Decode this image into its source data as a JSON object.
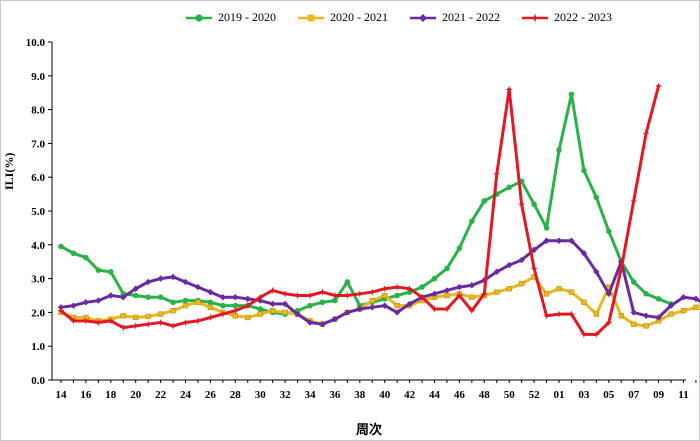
{
  "chart_data": {
    "type": "line",
    "xlabel": "周次",
    "ylabel": "ILI(%)",
    "ylim": [
      0,
      10
    ],
    "yticks": [
      "0.0",
      "1.0",
      "2.0",
      "3.0",
      "4.0",
      "5.0",
      "6.0",
      "7.0",
      "8.0",
      "9.0",
      "10.0"
    ],
    "x_tick_labels": [
      "14",
      "16",
      "18",
      "20",
      "22",
      "24",
      "26",
      "28",
      "30",
      "32",
      "34",
      "36",
      "38",
      "40",
      "42",
      "44",
      "46",
      "48",
      "50",
      "52",
      "01",
      "03",
      "05",
      "07",
      "09",
      "11"
    ],
    "week_count": 52,
    "series": [
      {
        "name": "2019 - 2020",
        "color": "#2bb04a",
        "marker": "circle",
        "values": [
          3.95,
          3.75,
          3.62,
          3.25,
          3.2,
          2.55,
          2.5,
          2.45,
          2.45,
          2.3,
          2.35,
          2.35,
          2.3,
          2.2,
          2.2,
          2.2,
          2.1,
          2.0,
          1.95,
          2.05,
          2.2,
          2.3,
          2.35,
          2.9,
          2.2,
          2.3,
          2.4,
          2.5,
          2.6,
          2.75,
          3.0,
          3.3,
          3.9,
          4.7,
          5.3,
          5.5,
          5.7,
          5.88,
          5.2,
          4.5,
          6.8,
          8.45,
          6.2,
          5.4,
          4.4,
          3.5,
          2.9,
          2.55,
          2.4,
          2.25
        ]
      },
      {
        "name": "2020 - 2021",
        "color": "#e8b820",
        "marker": "square",
        "values": [
          2.0,
          1.85,
          1.85,
          1.75,
          1.8,
          1.9,
          1.85,
          1.88,
          1.95,
          2.05,
          2.2,
          2.3,
          2.15,
          2.0,
          1.9,
          1.85,
          1.95,
          2.05,
          2.0,
          1.95,
          1.75,
          1.65,
          1.8,
          2.0,
          2.1,
          2.35,
          2.5,
          2.2,
          2.2,
          2.35,
          2.45,
          2.5,
          2.55,
          2.45,
          2.5,
          2.6,
          2.7,
          2.85,
          3.05,
          2.55,
          2.7,
          2.6,
          2.3,
          1.95,
          2.75,
          1.9,
          1.65,
          1.6,
          1.75,
          1.95,
          2.05,
          2.15
        ]
      },
      {
        "name": "2021 - 2022",
        "color": "#6a2aa0",
        "marker": "diamond",
        "values": [
          2.15,
          2.2,
          2.3,
          2.35,
          2.5,
          2.45,
          2.7,
          2.9,
          3.0,
          3.05,
          2.9,
          2.75,
          2.6,
          2.45,
          2.45,
          2.4,
          2.35,
          2.25,
          2.25,
          1.95,
          1.7,
          1.65,
          1.8,
          2.0,
          2.1,
          2.15,
          2.2,
          2.0,
          2.25,
          2.45,
          2.55,
          2.65,
          2.75,
          2.8,
          2.95,
          3.2,
          3.4,
          3.55,
          3.85,
          4.12,
          4.12,
          4.12,
          3.75,
          3.2,
          2.55,
          3.5,
          2.0,
          1.9,
          1.85,
          2.2,
          2.45,
          2.4,
          2.2
        ]
      },
      {
        "name": "2022 - 2023",
        "color": "#e01a22",
        "marker": "star",
        "values": [
          2.05,
          1.75,
          1.75,
          1.7,
          1.75,
          1.55,
          1.6,
          1.65,
          1.7,
          1.6,
          1.7,
          1.75,
          1.85,
          1.95,
          2.05,
          2.2,
          2.45,
          2.65,
          2.55,
          2.5,
          2.5,
          2.6,
          2.5,
          2.5,
          2.55,
          2.6,
          2.7,
          2.75,
          2.7,
          2.45,
          2.1,
          2.1,
          2.5,
          2.05,
          2.55,
          6.1,
          8.6,
          5.2,
          3.3,
          1.9,
          1.95,
          1.95,
          1.35,
          1.35,
          1.7,
          3.3,
          5.3,
          7.3,
          8.7
        ]
      }
    ]
  }
}
